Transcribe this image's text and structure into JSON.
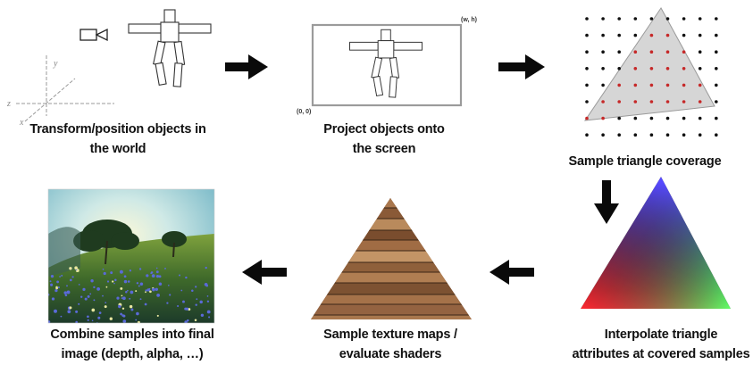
{
  "stages": [
    {
      "id": "transform",
      "lines": [
        "Transform/position objects in",
        "the world"
      ]
    },
    {
      "id": "project",
      "lines": [
        "Project objects onto",
        "the screen"
      ]
    },
    {
      "id": "sample",
      "lines": [
        "Sample triangle coverage"
      ]
    },
    {
      "id": "interpolate",
      "lines": [
        "Interpolate triangle",
        "attributes at covered samples"
      ]
    },
    {
      "id": "texture",
      "lines": [
        "Sample texture maps /",
        "evaluate shaders"
      ]
    },
    {
      "id": "combine",
      "lines": [
        "Combine samples into final",
        "image (depth, alpha, …)"
      ]
    }
  ],
  "axes": {
    "x": "x",
    "y": "y",
    "z": "z"
  },
  "screen_coords": {
    "top_right": "(w, h)",
    "bottom_left": "(0, 0)"
  },
  "icons": [
    "camera-icon",
    "robot-figure-icon"
  ],
  "colors": {
    "arrow": "#0a0a0a",
    "covered_sample": "#c62828",
    "uncovered_sample": "#111111",
    "triangle_fill": "#d6d6d6"
  }
}
